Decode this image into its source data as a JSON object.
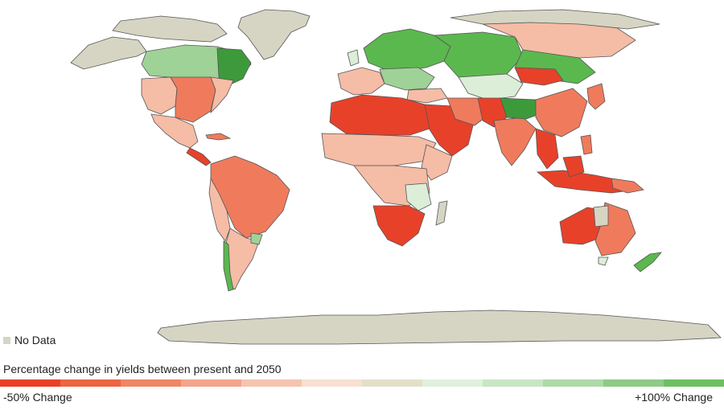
{
  "legend": {
    "title": "Percentage change in yields between present and 2050",
    "min_label": "-50% Change",
    "max_label": "+100% Change",
    "no_data_label": "No Data",
    "no_data_color": "#d6d5c4",
    "scale_colors": [
      "#e8412a",
      "#ec6544",
      "#ef8665",
      "#f2a58b",
      "#f5c4b0",
      "#f8e0d3",
      "#e3e0c8",
      "#dff0dc",
      "#c8e6c4",
      "#aed9a8",
      "#8ecb86",
      "#6fbe62"
    ]
  },
  "palette": {
    "no_data": "#d6d5c4",
    "strong_decrease": "#e8412a",
    "decrease": "#ef7b5c",
    "mild_decrease": "#f5bca6",
    "slight_decrease": "#f9ddd0",
    "slight_increase": "#dceed7",
    "increase": "#9fd296",
    "strong_increase": "#5bb84e",
    "very_strong_increase": "#3d9a3a"
  }
}
